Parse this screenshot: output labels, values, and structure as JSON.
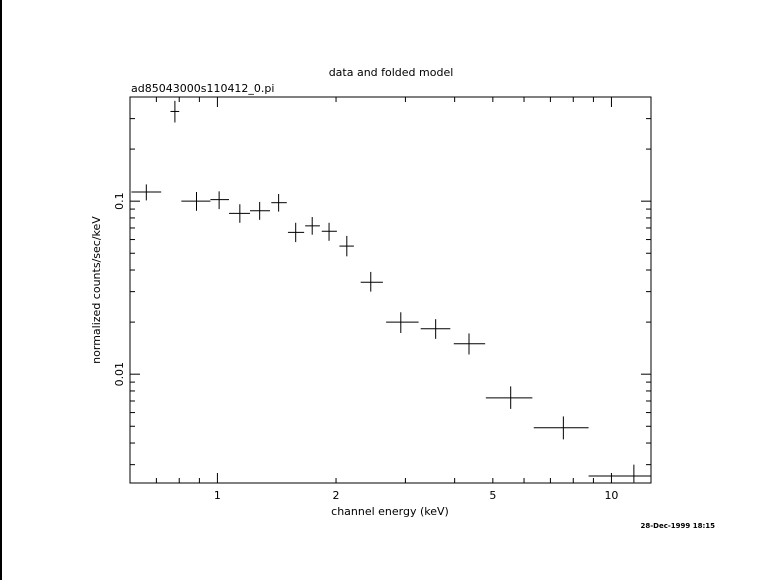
{
  "chart_data": {
    "type": "scatter",
    "title": "data and folded model",
    "subtitle": "ad85043000s110412_0.pi",
    "xlabel": "channel energy (keV)",
    "ylabel": "normalized counts/sec/keV",
    "xscale": "log",
    "yscale": "log",
    "xlim": [
      0.6,
      12.6
    ],
    "ylim": [
      0.00235,
      0.4
    ],
    "x_tick_labels": [
      {
        "value": 1,
        "label": "1"
      },
      {
        "value": 2,
        "label": "2"
      },
      {
        "value": 5,
        "label": "5"
      },
      {
        "value": 10,
        "label": "10"
      }
    ],
    "y_tick_labels": [
      {
        "value": 0.1,
        "label": "0.1"
      },
      {
        "value": 0.01,
        "label": "0.01"
      }
    ],
    "points": [
      {
        "x": 0.66,
        "xlo": 0.605,
        "xhi": 0.72,
        "y": 0.113,
        "ylo": 0.101,
        "yhi": 0.125
      },
      {
        "x": 0.78,
        "xlo": 0.76,
        "xhi": 0.8,
        "y": 0.33,
        "ylo": 0.285,
        "yhi": 0.38
      },
      {
        "x": 0.885,
        "xlo": 0.81,
        "xhi": 0.96,
        "y": 0.1,
        "ylo": 0.088,
        "yhi": 0.113
      },
      {
        "x": 1.01,
        "xlo": 0.96,
        "xhi": 1.07,
        "y": 0.102,
        "ylo": 0.09,
        "yhi": 0.114
      },
      {
        "x": 1.14,
        "xlo": 1.07,
        "xhi": 1.21,
        "y": 0.085,
        "ylo": 0.075,
        "yhi": 0.096
      },
      {
        "x": 1.28,
        "xlo": 1.21,
        "xhi": 1.36,
        "y": 0.088,
        "ylo": 0.078,
        "yhi": 0.099
      },
      {
        "x": 1.43,
        "xlo": 1.37,
        "xhi": 1.5,
        "y": 0.098,
        "ylo": 0.087,
        "yhi": 0.11
      },
      {
        "x": 1.58,
        "xlo": 1.51,
        "xhi": 1.66,
        "y": 0.066,
        "ylo": 0.058,
        "yhi": 0.075
      },
      {
        "x": 1.74,
        "xlo": 1.67,
        "xhi": 1.82,
        "y": 0.072,
        "ylo": 0.064,
        "yhi": 0.081
      },
      {
        "x": 1.92,
        "xlo": 1.84,
        "xhi": 2.01,
        "y": 0.067,
        "ylo": 0.059,
        "yhi": 0.075
      },
      {
        "x": 2.13,
        "xlo": 2.04,
        "xhi": 2.22,
        "y": 0.055,
        "ylo": 0.048,
        "yhi": 0.063
      },
      {
        "x": 2.45,
        "xlo": 2.31,
        "xhi": 2.63,
        "y": 0.034,
        "ylo": 0.03,
        "yhi": 0.039
      },
      {
        "x": 2.92,
        "xlo": 2.68,
        "xhi": 3.24,
        "y": 0.02,
        "ylo": 0.0173,
        "yhi": 0.0228
      },
      {
        "x": 3.58,
        "xlo": 3.28,
        "xhi": 3.9,
        "y": 0.0183,
        "ylo": 0.016,
        "yhi": 0.0208
      },
      {
        "x": 4.35,
        "xlo": 3.98,
        "xhi": 4.78,
        "y": 0.015,
        "ylo": 0.013,
        "yhi": 0.0172
      },
      {
        "x": 5.55,
        "xlo": 4.8,
        "xhi": 6.3,
        "y": 0.0073,
        "ylo": 0.0063,
        "yhi": 0.0085
      },
      {
        "x": 7.55,
        "xlo": 6.35,
        "xhi": 8.75,
        "y": 0.0049,
        "ylo": 0.0042,
        "yhi": 0.0057
      },
      {
        "x": 11.4,
        "xlo": 8.75,
        "xhi": 12.6,
        "y": 0.00258,
        "ylo": 0.00237,
        "yhi": 0.003
      }
    ],
    "grid": false,
    "legend": "none"
  },
  "footer": {
    "timestamp": "28-Dec-1999 18:15"
  }
}
